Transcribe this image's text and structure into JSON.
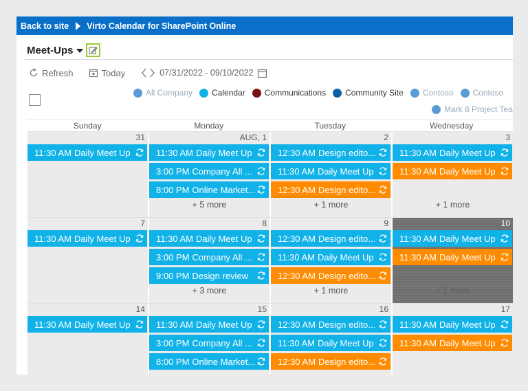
{
  "topbar": {
    "back": "Back to site",
    "app_title": "Virto Calendar for SharePoint Online"
  },
  "calendar": {
    "title": "Meet-Ups"
  },
  "toolbar": {
    "refresh": "Refresh",
    "today": "Today",
    "date_range": "07/31/2022 - 09/10/2022"
  },
  "legend": [
    {
      "label": "All Company",
      "color": "#5b9bd5",
      "text_color": "#9ab"
    },
    {
      "label": "Calendar",
      "color": "#10b2e8",
      "text_color": "#333"
    },
    {
      "label": "Communications",
      "color": "#7a0f14",
      "text_color": "#333"
    },
    {
      "label": "Community Site",
      "color": "#0a5fa8",
      "text_color": "#333"
    },
    {
      "label": "Contoso",
      "color": "#5b9bd5",
      "text_color": "#9ab"
    },
    {
      "label": "Contoso",
      "color": "#5b9bd5",
      "text_color": "#9ab"
    }
  ],
  "legend2": {
    "label": "Mark 8 Project Tea",
    "color": "#5b9bd5"
  },
  "day_headers": [
    "Sunday",
    "Monday",
    "Tuesday",
    "Wednesday"
  ],
  "weeks": [
    {
      "days": [
        {
          "num": "31",
          "bg": "#ebebeb",
          "events": [
            {
              "time": "11:30 AM",
              "title": "Daily Meet Up",
              "color": "blue"
            }
          ],
          "more": ""
        },
        {
          "num": "AUG, 1",
          "bg": "#ebebeb",
          "events": [
            {
              "time": "11:30 AM",
              "title": "Daily Meet Up",
              "color": "blue"
            },
            {
              "time": "3:00 PM",
              "title": "Company All ...",
              "color": "blue"
            },
            {
              "time": "8:00 PM",
              "title": "Online Market...",
              "color": "blue"
            }
          ],
          "more": "+ 5 more"
        },
        {
          "num": "2",
          "bg": "#ebebeb",
          "events": [
            {
              "time": "12:30 AM",
              "title": "Design edito...",
              "color": "blue"
            },
            {
              "time": "11:30 AM",
              "title": "Daily Meet Up",
              "color": "blue"
            },
            {
              "time": "12:30 AM",
              "title": "Design edito...",
              "color": "orange"
            }
          ],
          "more": "+ 1 more"
        },
        {
          "num": "3",
          "bg": "#ebebeb",
          "events": [
            {
              "time": "11:30 AM",
              "title": "Daily Meet Up",
              "color": "blue"
            },
            {
              "time": "11:30 AM",
              "title": "Daily Meet Up",
              "color": "orange"
            }
          ],
          "more": "+ 1 more"
        }
      ]
    },
    {
      "days": [
        {
          "num": "7",
          "bg": "#ebebeb",
          "events": [
            {
              "time": "11:30 AM",
              "title": "Daily Meet Up",
              "color": "blue"
            }
          ],
          "more": ""
        },
        {
          "num": "8",
          "bg": "#ebebeb",
          "events": [
            {
              "time": "11:30 AM",
              "title": "Daily Meet Up",
              "color": "blue"
            },
            {
              "time": "3:00 PM",
              "title": "Company All ...",
              "color": "blue"
            },
            {
              "time": "9:00 PM",
              "title": "Design review",
              "color": "blue"
            }
          ],
          "more": "+ 3 more"
        },
        {
          "num": "9",
          "bg": "#ebebeb",
          "events": [
            {
              "time": "12:30 AM",
              "title": "Design edito...",
              "color": "blue"
            },
            {
              "time": "11:30 AM",
              "title": "Daily Meet Up",
              "color": "blue"
            },
            {
              "time": "12:30 AM",
              "title": "Design edito...",
              "color": "orange"
            }
          ],
          "more": "+ 1 more"
        },
        {
          "num": "10",
          "bg": "#707070",
          "today": true,
          "events": [
            {
              "time": "11:30 AM",
              "title": "Daily Meet Up",
              "color": "blue"
            },
            {
              "time": "11:30 AM",
              "title": "Daily Meet Up",
              "color": "orange"
            }
          ],
          "more": "+ 1 more"
        }
      ]
    },
    {
      "days": [
        {
          "num": "14",
          "bg": "#ebebeb",
          "events": [
            {
              "time": "11:30 AM",
              "title": "Daily Meet Up",
              "color": "blue"
            }
          ],
          "more": ""
        },
        {
          "num": "15",
          "bg": "#ebebeb",
          "events": [
            {
              "time": "11:30 AM",
              "title": "Daily Meet Up",
              "color": "blue"
            },
            {
              "time": "3:00 PM",
              "title": "Company All ...",
              "color": "blue"
            },
            {
              "time": "8:00 PM",
              "title": "Online Market...",
              "color": "blue"
            }
          ],
          "more": ""
        },
        {
          "num": "16",
          "bg": "#ebebeb",
          "events": [
            {
              "time": "12:30 AM",
              "title": "Design edito...",
              "color": "blue"
            },
            {
              "time": "11:30 AM",
              "title": "Daily Meet Up",
              "color": "blue"
            },
            {
              "time": "12:30 AM",
              "title": "Design edito...",
              "color": "orange"
            }
          ],
          "more": ""
        },
        {
          "num": "17",
          "bg": "#ebebeb",
          "events": [
            {
              "time": "11:30 AM",
              "title": "Daily Meet Up",
              "color": "blue"
            },
            {
              "time": "11:30 AM",
              "title": "Daily Meet Up",
              "color": "orange"
            }
          ],
          "more": ""
        }
      ]
    }
  ]
}
